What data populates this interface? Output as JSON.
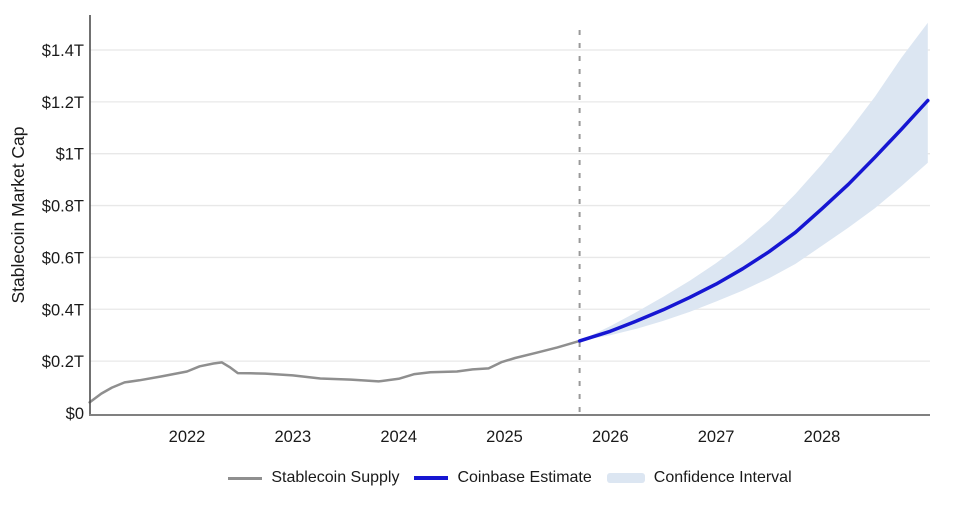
{
  "chart_data": {
    "type": "line",
    "title": "",
    "xlabel": "",
    "ylabel": "Stablecoin Market Cap",
    "unit": "USD trillions",
    "legend_position": "bottom",
    "forecast_divider_x": 2025.71,
    "x_axis": {
      "range": [
        2021.08,
        2029.02
      ],
      "ticks": [
        2022,
        2023,
        2024,
        2025,
        2026,
        2027,
        2028
      ],
      "gridlines": false
    },
    "y_axis": {
      "range": [
        0,
        1.545
      ],
      "gridlines": true,
      "ticks": [
        {
          "v": 0,
          "label": "$0"
        },
        {
          "v": 0.2,
          "label": "$0.2T"
        },
        {
          "v": 0.4,
          "label": "$0.4T"
        },
        {
          "v": 0.6,
          "label": "$0.6T"
        },
        {
          "v": 0.8,
          "label": "$0.8T"
        },
        {
          "v": 1.0,
          "label": "$1T"
        },
        {
          "v": 1.2,
          "label": "$1.2T"
        },
        {
          "v": 1.4,
          "label": "$1.4T"
        }
      ]
    },
    "series": [
      {
        "name": "Stablecoin Supply",
        "kind": "line",
        "color": "#8f8f8f",
        "points": [
          [
            2021.08,
            0.041
          ],
          [
            2021.19,
            0.075
          ],
          [
            2021.29,
            0.098
          ],
          [
            2021.41,
            0.118
          ],
          [
            2021.55,
            0.126
          ],
          [
            2021.76,
            0.141
          ],
          [
            2022.0,
            0.16
          ],
          [
            2022.12,
            0.18
          ],
          [
            2022.25,
            0.191
          ],
          [
            2022.33,
            0.195
          ],
          [
            2022.41,
            0.175
          ],
          [
            2022.48,
            0.154
          ],
          [
            2022.6,
            0.153
          ],
          [
            2022.74,
            0.152
          ],
          [
            2023.0,
            0.145
          ],
          [
            2023.26,
            0.133
          ],
          [
            2023.55,
            0.129
          ],
          [
            2023.81,
            0.122
          ],
          [
            2024.0,
            0.132
          ],
          [
            2024.15,
            0.15
          ],
          [
            2024.3,
            0.157
          ],
          [
            2024.55,
            0.16
          ],
          [
            2024.7,
            0.168
          ],
          [
            2024.85,
            0.172
          ],
          [
            2024.97,
            0.196
          ],
          [
            2025.1,
            0.212
          ],
          [
            2025.3,
            0.232
          ],
          [
            2025.5,
            0.253
          ],
          [
            2025.71,
            0.278
          ]
        ]
      },
      {
        "name": "Coinbase Estimate",
        "kind": "line",
        "color": "#1616d2",
        "points": [
          [
            2025.71,
            0.278
          ],
          [
            2026.0,
            0.315
          ],
          [
            2026.25,
            0.355
          ],
          [
            2026.5,
            0.398
          ],
          [
            2026.75,
            0.446
          ],
          [
            2027.0,
            0.497
          ],
          [
            2027.25,
            0.556
          ],
          [
            2027.5,
            0.622
          ],
          [
            2027.75,
            0.697
          ],
          [
            2028.0,
            0.788
          ],
          [
            2028.25,
            0.882
          ],
          [
            2028.5,
            0.986
          ],
          [
            2028.75,
            1.094
          ],
          [
            2029.0,
            1.205
          ]
        ]
      },
      {
        "name": "Confidence Interval",
        "kind": "band",
        "color": "#dce6f2",
        "points": [
          [
            2025.71,
            0.278,
            0.278
          ],
          [
            2026.0,
            0.3,
            0.335
          ],
          [
            2026.25,
            0.325,
            0.39
          ],
          [
            2026.5,
            0.355,
            0.448
          ],
          [
            2026.75,
            0.39,
            0.51
          ],
          [
            2027.0,
            0.43,
            0.578
          ],
          [
            2027.25,
            0.472,
            0.655
          ],
          [
            2027.5,
            0.52,
            0.742
          ],
          [
            2027.75,
            0.575,
            0.845
          ],
          [
            2028.0,
            0.645,
            0.96
          ],
          [
            2028.25,
            0.715,
            1.085
          ],
          [
            2028.5,
            0.79,
            1.22
          ],
          [
            2028.75,
            0.875,
            1.37
          ],
          [
            2029.0,
            0.965,
            1.505
          ]
        ]
      }
    ]
  },
  "colors": {
    "background": "#ffffff",
    "grid": "#e8e8e8",
    "x_axis_line": "#808080",
    "y_axis_line": "#4d4d4d",
    "divider": "#999999",
    "text": "#1a1a1a"
  }
}
